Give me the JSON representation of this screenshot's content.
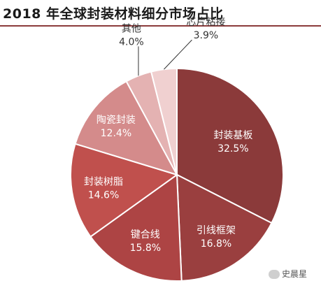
{
  "chart_data": {
    "type": "pie",
    "title": "2018 年全球封装材料细分市场占比",
    "slices": [
      {
        "label": "封装基板",
        "value": 32.5,
        "display": "32.5%",
        "color": "#8b3a3a"
      },
      {
        "label": "引线框架",
        "value": 16.8,
        "display": "16.8%",
        "color": "#9a3f3f"
      },
      {
        "label": "键合线",
        "value": 15.8,
        "display": "15.8%",
        "color": "#ad4444"
      },
      {
        "label": "封装树脂",
        "value": 14.6,
        "display": "14.6%",
        "color": "#c0504d"
      },
      {
        "label": "陶瓷封装",
        "value": 12.4,
        "display": "12.4%",
        "color": "#d48b8b"
      },
      {
        "label": "其他",
        "value": 4.0,
        "display": "4.0%",
        "color": "#e4b2b2"
      },
      {
        "label": "芯片粘接",
        "value": 3.9,
        "display": "3.9%",
        "color": "#f0d0d0"
      }
    ],
    "label_color": "#333333",
    "inside_label_color": "#ffffff"
  },
  "watermark": {
    "text": "史晨星",
    "icon": "wechat-icon"
  }
}
